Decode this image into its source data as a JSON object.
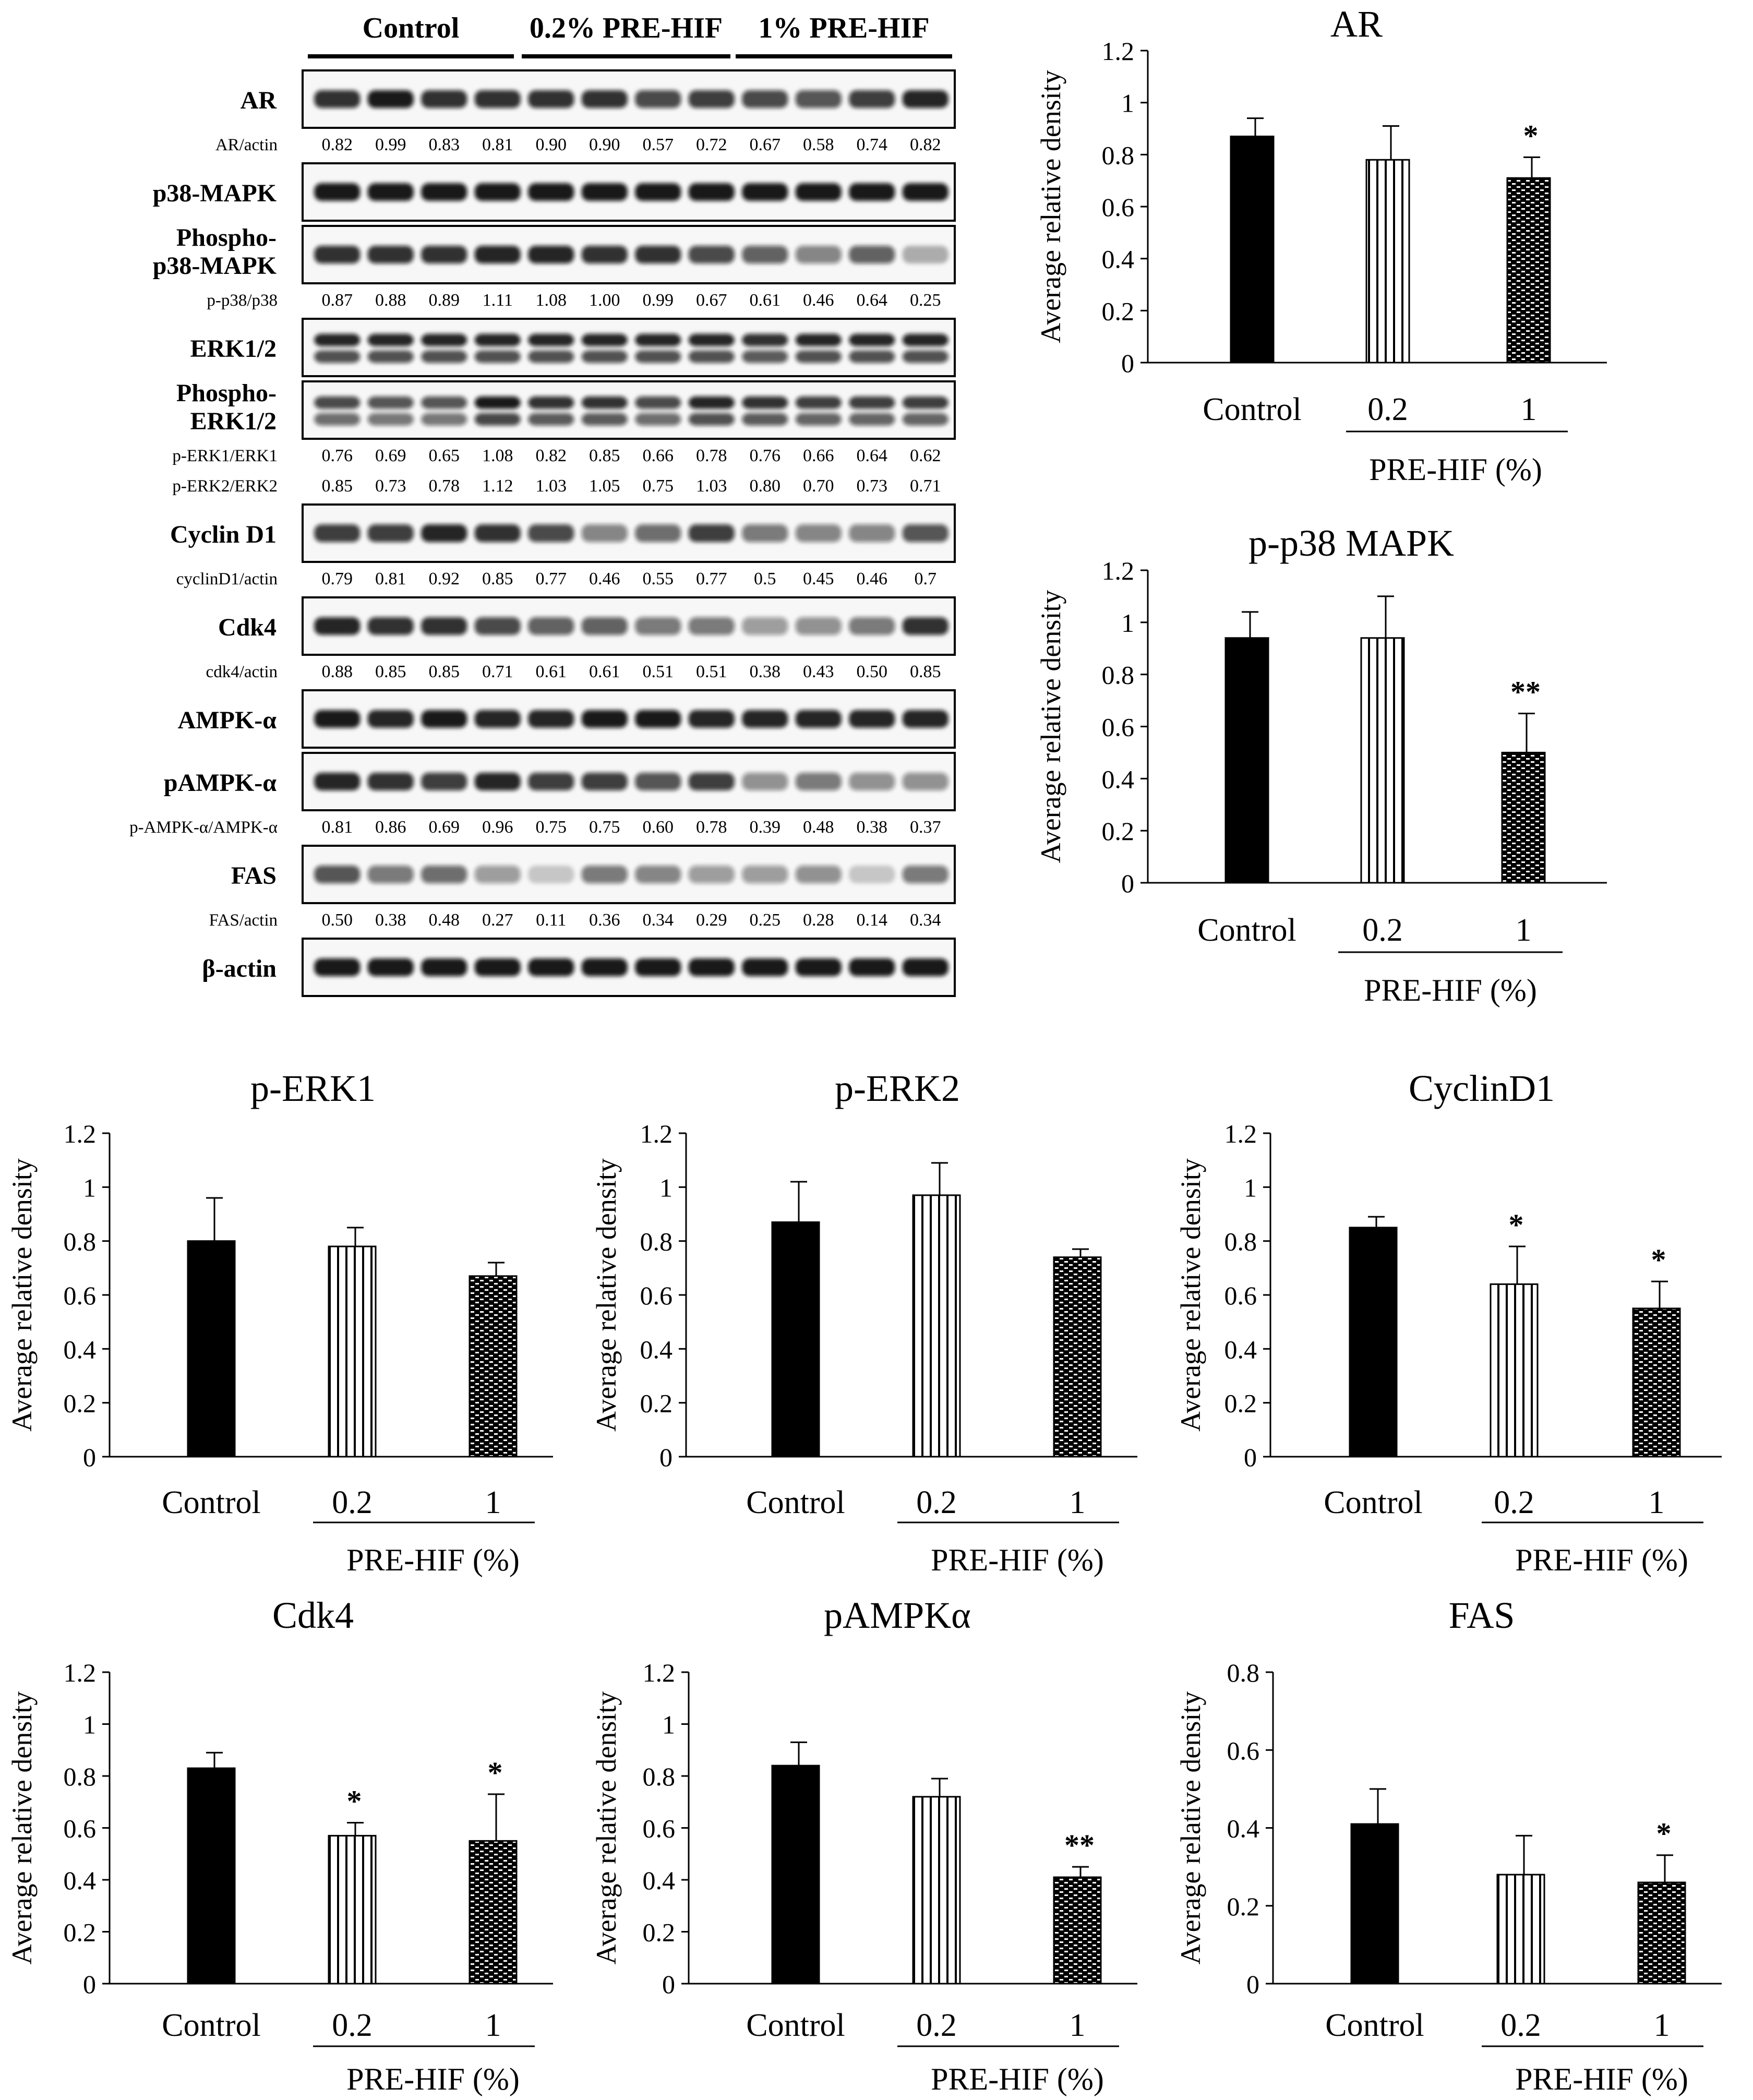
{
  "blot": {
    "groups": [
      {
        "label": "Control"
      },
      {
        "label": "0.2% PRE-HIF"
      },
      {
        "label": "1% PRE-HIF"
      }
    ],
    "rows": [
      {
        "label": [
          "AR"
        ],
        "bands": "single",
        "intensity": [
          0.85,
          0.95,
          0.85,
          0.85,
          0.85,
          0.85,
          0.75,
          0.8,
          0.75,
          0.7,
          0.8,
          0.9
        ]
      },
      {
        "ratio": "AR/actin",
        "values": [
          "0.82",
          "0.99",
          "0.83",
          "0.81",
          "0.90",
          "0.90",
          "0.57",
          "0.72",
          "0.67",
          "0.58",
          "0.74",
          "0.82"
        ]
      },
      {
        "label": [
          "p38-MAPK"
        ],
        "bands": "single",
        "intensity": [
          0.95,
          0.95,
          0.95,
          0.95,
          0.95,
          0.95,
          0.95,
          0.95,
          0.95,
          0.95,
          0.95,
          0.95
        ]
      },
      {
        "label": [
          "Phospho-",
          "p38-MAPK"
        ],
        "bands": "single",
        "intensity": [
          0.85,
          0.85,
          0.85,
          0.9,
          0.9,
          0.85,
          0.85,
          0.75,
          0.65,
          0.5,
          0.65,
          0.3
        ]
      },
      {
        "ratio": "p-p38/p38",
        "values": [
          "0.87",
          "0.88",
          "0.89",
          "1.11",
          "1.08",
          "1.00",
          "0.99",
          "0.67",
          "0.61",
          "0.46",
          "0.64",
          "0.25"
        ]
      },
      {
        "label": [
          "ERK1/2"
        ],
        "bands": "double",
        "intensity": [
          0.9,
          0.9,
          0.9,
          0.9,
          0.9,
          0.9,
          0.9,
          0.9,
          0.85,
          0.9,
          0.9,
          0.9
        ]
      },
      {
        "label": [
          "Phospho-",
          "ERK1/2"
        ],
        "bands": "double",
        "intensity": [
          0.75,
          0.7,
          0.7,
          0.95,
          0.85,
          0.85,
          0.75,
          0.9,
          0.85,
          0.8,
          0.8,
          0.8
        ]
      },
      {
        "ratio": "p-ERK1/ERK1",
        "values": [
          "0.76",
          "0.69",
          "0.65",
          "1.08",
          "0.82",
          "0.85",
          "0.66",
          "0.78",
          "0.76",
          "0.66",
          "0.64",
          "0.62"
        ]
      },
      {
        "ratio": "p-ERK2/ERK2",
        "values": [
          "0.85",
          "0.73",
          "0.78",
          "1.12",
          "1.03",
          "1.05",
          "0.75",
          "1.03",
          "0.80",
          "0.70",
          "0.73",
          "0.71"
        ]
      },
      {
        "label": [
          "Cyclin D1"
        ],
        "bands": "single",
        "intensity": [
          0.8,
          0.8,
          0.9,
          0.85,
          0.75,
          0.5,
          0.6,
          0.8,
          0.55,
          0.5,
          0.5,
          0.7
        ]
      },
      {
        "ratio": "cyclinD1/actin",
        "values": [
          "0.79",
          "0.81",
          "0.92",
          "0.85",
          "0.77",
          "0.46",
          "0.55",
          "0.77",
          "0.5",
          "0.45",
          "0.46",
          "0.7"
        ]
      },
      {
        "label": [
          "Cdk4"
        ],
        "bands": "single",
        "intensity": [
          0.9,
          0.85,
          0.85,
          0.75,
          0.65,
          0.65,
          0.55,
          0.55,
          0.4,
          0.45,
          0.55,
          0.85
        ]
      },
      {
        "ratio": "cdk4/actin",
        "values": [
          "0.88",
          "0.85",
          "0.85",
          "0.71",
          "0.61",
          "0.61",
          "0.51",
          "0.51",
          "0.38",
          "0.43",
          "0.50",
          "0.85"
        ]
      },
      {
        "label": [
          "AMPK-α"
        ],
        "bands": "single",
        "intensity": [
          0.95,
          0.9,
          0.95,
          0.9,
          0.9,
          0.95,
          0.95,
          0.9,
          0.9,
          0.9,
          0.9,
          0.9
        ]
      },
      {
        "label": [
          "pAMPK-α"
        ],
        "bands": "single",
        "intensity": [
          0.9,
          0.85,
          0.8,
          0.9,
          0.8,
          0.8,
          0.7,
          0.8,
          0.45,
          0.55,
          0.45,
          0.45
        ]
      },
      {
        "ratio": "p-AMPK-α/AMPK-α",
        "values": [
          "0.81",
          "0.86",
          "0.69",
          "0.96",
          "0.75",
          "0.75",
          "0.60",
          "0.78",
          "0.39",
          "0.48",
          "0.38",
          "0.37"
        ]
      },
      {
        "label": [
          "FAS"
        ],
        "bands": "single",
        "intensity": [
          0.7,
          0.55,
          0.6,
          0.4,
          0.2,
          0.55,
          0.5,
          0.4,
          0.4,
          0.45,
          0.2,
          0.55
        ]
      },
      {
        "ratio": "FAS/actin",
        "values": [
          "0.50",
          "0.38",
          "0.48",
          "0.27",
          "0.11",
          "0.36",
          "0.34",
          "0.29",
          "0.25",
          "0.28",
          "0.14",
          "0.34"
        ]
      },
      {
        "label": [
          "β-actin"
        ],
        "bands": "single",
        "intensity": [
          0.95,
          0.95,
          0.95,
          0.95,
          0.95,
          0.95,
          0.95,
          0.95,
          0.95,
          0.95,
          0.95,
          0.95
        ]
      }
    ]
  },
  "chart_data": [
    {
      "id": "AR",
      "type": "bar",
      "title": "AR",
      "ylabel": "Average relative density",
      "xlabel": "PRE-HIF (%)",
      "categories": [
        "Control",
        "0.2",
        "1"
      ],
      "values": [
        0.87,
        0.78,
        0.71
      ],
      "errors": [
        0.07,
        0.13,
        0.08
      ],
      "significance": [
        "",
        "",
        "*"
      ],
      "ylim": [
        0,
        1.2
      ],
      "yticks": [
        "0",
        "0.2",
        "0.4",
        "0.6",
        "0.8",
        "1",
        "1.2"
      ]
    },
    {
      "id": "p38",
      "type": "bar",
      "title": "p-p38 MAPK",
      "ylabel": "Average relative density",
      "xlabel": "PRE-HIF (%)",
      "categories": [
        "Control",
        "0.2",
        "1"
      ],
      "values": [
        0.94,
        0.94,
        0.5
      ],
      "errors": [
        0.1,
        0.16,
        0.15
      ],
      "significance": [
        "",
        "",
        "**"
      ],
      "ylim": [
        0,
        1.2
      ],
      "yticks": [
        "0",
        "0.2",
        "0.4",
        "0.6",
        "0.8",
        "1",
        "1.2"
      ]
    },
    {
      "id": "ERK1",
      "type": "bar",
      "title": "p-ERK1",
      "ylabel": "Average relative density",
      "xlabel": "PRE-HIF (%)",
      "categories": [
        "Control",
        "0.2",
        "1"
      ],
      "values": [
        0.8,
        0.78,
        0.67
      ],
      "errors": [
        0.16,
        0.07,
        0.05
      ],
      "significance": [
        "",
        "",
        ""
      ],
      "ylim": [
        0,
        1.2
      ],
      "yticks": [
        "0",
        "0.2",
        "0.4",
        "0.6",
        "0.8",
        "1",
        "1.2"
      ]
    },
    {
      "id": "ERK2",
      "type": "bar",
      "title": "p-ERK2",
      "ylabel": "Average relative density",
      "xlabel": "PRE-HIF (%)",
      "categories": [
        "Control",
        "0.2",
        "1"
      ],
      "values": [
        0.87,
        0.97,
        0.74
      ],
      "errors": [
        0.15,
        0.12,
        0.03
      ],
      "significance": [
        "",
        "",
        ""
      ],
      "ylim": [
        0,
        1.2
      ],
      "yticks": [
        "0",
        "0.2",
        "0.4",
        "0.6",
        "0.8",
        "1",
        "1.2"
      ]
    },
    {
      "id": "CyclinD1",
      "type": "bar",
      "title": "CyclinD1",
      "ylabel": "Average relative density",
      "xlabel": "PRE-HIF (%)",
      "categories": [
        "Control",
        "0.2",
        "1"
      ],
      "values": [
        0.85,
        0.64,
        0.55
      ],
      "errors": [
        0.04,
        0.14,
        0.1
      ],
      "significance": [
        "",
        "*",
        "*"
      ],
      "ylim": [
        0,
        1.2
      ],
      "yticks": [
        "0",
        "0.2",
        "0.4",
        "0.6",
        "0.8",
        "1",
        "1.2"
      ]
    },
    {
      "id": "Cdk4",
      "type": "bar",
      "title": "Cdk4",
      "ylabel": "Average relative density",
      "xlabel": "PRE-HIF (%)",
      "categories": [
        "Control",
        "0.2",
        "1"
      ],
      "values": [
        0.83,
        0.57,
        0.55
      ],
      "errors": [
        0.06,
        0.05,
        0.18
      ],
      "significance": [
        "",
        "*",
        "*"
      ],
      "ylim": [
        0,
        1.2
      ],
      "yticks": [
        "0",
        "0.2",
        "0.4",
        "0.6",
        "0.8",
        "1",
        "1.2"
      ]
    },
    {
      "id": "pAMPK",
      "type": "bar",
      "title": "pAMPKα",
      "ylabel": "Average relative density",
      "xlabel": "PRE-HIF (%)",
      "categories": [
        "Control",
        "0.2",
        "1"
      ],
      "values": [
        0.84,
        0.72,
        0.41
      ],
      "errors": [
        0.09,
        0.07,
        0.04
      ],
      "significance": [
        "",
        "",
        "**"
      ],
      "ylim": [
        0,
        1.2
      ],
      "yticks": [
        "0",
        "0.2",
        "0.4",
        "0.6",
        "0.8",
        "1",
        "1.2"
      ]
    },
    {
      "id": "FAS",
      "type": "bar",
      "title": "FAS",
      "ylabel": "Average relative density",
      "xlabel": "PRE-HIF (%)",
      "categories": [
        "Control",
        "0.2",
        "1"
      ],
      "values": [
        0.41,
        0.28,
        0.26
      ],
      "errors": [
        0.09,
        0.1,
        0.07
      ],
      "significance": [
        "",
        "",
        "*"
      ],
      "ylim": [
        0,
        0.8
      ],
      "yticks": [
        "0",
        "0.2",
        "0.4",
        "0.6",
        "0.8"
      ]
    }
  ]
}
